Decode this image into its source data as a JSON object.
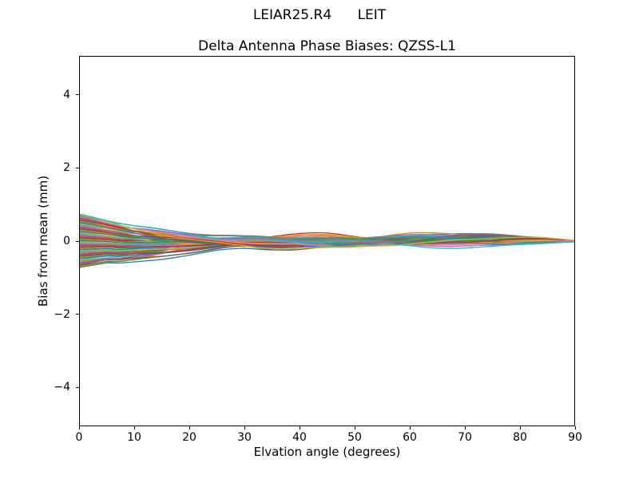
{
  "chart_data": {
    "type": "line",
    "suptitle": "LEIAR25.R4      LEIT",
    "title": "Delta Antenna Phase Biases: QZSS-L1",
    "xlabel": "Elvation angle (degrees)",
    "ylabel": "Bias from mean (mm)",
    "xlim": [
      0,
      90
    ],
    "ylim": [
      -5.07,
      5.07
    ],
    "xticks": [
      0,
      10,
      20,
      30,
      40,
      50,
      60,
      70,
      80,
      90
    ],
    "yticks": [
      -4,
      -2,
      0,
      2,
      4
    ],
    "grid": false,
    "legend": "none",
    "axes_box": true,
    "background_color": "#ffffff",
    "axis_color": "#000000",
    "n_series": 60,
    "series_description": "Delta phase-bias curves (one per azimuth), unlabeled, spanning about -0.72 to +0.74 mm at 0 deg elevation and converging to 0 mm at 90 deg",
    "color_cycle": [
      "#1f77b4",
      "#ff7f0e",
      "#2ca02c",
      "#d62728",
      "#9467bd",
      "#8c564b",
      "#e377c2",
      "#7f7f7f",
      "#bcbd22",
      "#17becf"
    ],
    "line_width": 1.3,
    "envelope": {
      "x": [
        0,
        5,
        7,
        10,
        15,
        20,
        25,
        30,
        35,
        38,
        45,
        52,
        55,
        58,
        62,
        65,
        69,
        75,
        80,
        85,
        90
      ],
      "top": [
        0.74,
        0.58,
        0.53,
        0.47,
        0.4,
        0.32,
        0.26,
        0.22,
        0.24,
        0.25,
        0.21,
        0.13,
        0.13,
        0.17,
        0.22,
        0.24,
        0.26,
        0.22,
        0.16,
        0.1,
        0.02
      ],
      "bottom": [
        -0.72,
        -0.6,
        -0.62,
        -0.58,
        -0.5,
        -0.4,
        -0.3,
        -0.24,
        -0.26,
        -0.26,
        -0.22,
        -0.13,
        -0.12,
        -0.15,
        -0.17,
        -0.18,
        -0.18,
        -0.16,
        -0.12,
        -0.07,
        -0.02
      ]
    },
    "generator": {
      "braid_rate_base": 0.5,
      "braid_rate_span": 1.7,
      "golden_fraction": 0.618034,
      "phase_step": 2.39996,
      "wiggle_amp": 0.035,
      "wiggle_freq": 0.3,
      "sample_step_deg": 0.75
    }
  }
}
